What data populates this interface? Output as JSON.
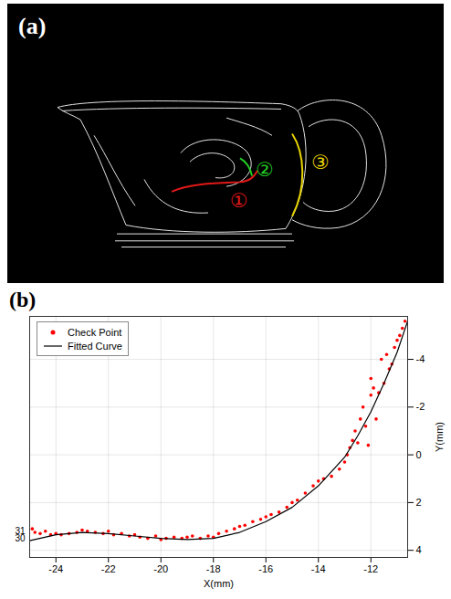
{
  "image_panel": {
    "label": "(a)",
    "markers": [
      {
        "text": "①",
        "color": "#e01818"
      },
      {
        "text": "②",
        "color": "#22cc22"
      },
      {
        "text": "③",
        "color": "#e6d200"
      }
    ]
  },
  "chart_data": {
    "panel_label": "(b)",
    "type": "scatter",
    "xlabel": "X(mm)",
    "ylabel": "Y(mm)",
    "xlim": [
      -25,
      -10.6
    ],
    "ylim": [
      -5.8,
      4.3
    ],
    "xticks": [
      -24,
      -22,
      -20,
      -18,
      -16,
      -14,
      -12
    ],
    "yticks": [
      -4,
      -2,
      0,
      2,
      4
    ],
    "grid": true,
    "legend": "top-left",
    "annotations": [
      {
        "text": "31",
        "y": 3.2
      },
      {
        "text": "30",
        "y": 3.5
      }
    ],
    "series": [
      {
        "name": "Check Point",
        "type": "scatter",
        "color": "#ff0000",
        "marker": "dot",
        "x": [
          -24.9,
          -24.8,
          -24.6,
          -24.4,
          -24.2,
          -24.0,
          -23.8,
          -23.5,
          -23.2,
          -23.0,
          -22.8,
          -22.5,
          -22.2,
          -22.0,
          -21.8,
          -21.5,
          -21.2,
          -21.0,
          -20.8,
          -20.5,
          -20.2,
          -20.0,
          -19.8,
          -19.5,
          -19.2,
          -19.0,
          -18.8,
          -18.5,
          -18.2,
          -18.0,
          -17.8,
          -17.5,
          -17.2,
          -17.0,
          -16.8,
          -16.5,
          -16.2,
          -16.0,
          -15.8,
          -15.5,
          -15.2,
          -15.0,
          -14.8,
          -14.5,
          -14.2,
          -14.0,
          -13.8,
          -13.5,
          -13.2,
          -13.0,
          -12.9,
          -12.8,
          -12.7,
          -12.6,
          -12.5,
          -12.4,
          -12.3,
          -12.2,
          -12.1,
          -12.0,
          -12.0,
          -11.9,
          -11.8,
          -11.7,
          -11.6,
          -11.5,
          -11.4,
          -11.3,
          -11.2,
          -11.1,
          -11.0,
          -10.9,
          -10.8,
          -10.7
        ],
        "values": [
          3.1,
          3.25,
          3.3,
          3.2,
          3.35,
          3.3,
          3.35,
          3.3,
          3.25,
          3.15,
          3.2,
          3.25,
          3.3,
          3.2,
          3.35,
          3.3,
          3.4,
          3.35,
          3.45,
          3.5,
          3.4,
          3.55,
          3.5,
          3.45,
          3.5,
          3.45,
          3.4,
          3.5,
          3.4,
          3.45,
          3.3,
          3.2,
          3.1,
          3.0,
          2.95,
          2.8,
          2.7,
          2.6,
          2.5,
          2.4,
          2.2,
          2.0,
          1.9,
          1.6,
          1.3,
          1.1,
          1.0,
          0.9,
          0.6,
          0.3,
          0.0,
          -0.3,
          -0.6,
          -1.0,
          -0.5,
          -1.5,
          -2.0,
          -1.2,
          -0.4,
          -2.5,
          -3.2,
          -2.8,
          -1.5,
          -2.6,
          -4.0,
          -3.0,
          -4.2,
          -3.6,
          -3.8,
          -4.5,
          -4.8,
          -5.0,
          -5.3,
          -5.6
        ]
      },
      {
        "name": "Fitted Curve",
        "type": "line",
        "color": "#000000",
        "line_style": "solid",
        "x": [
          -25,
          -24,
          -23,
          -22,
          -21,
          -20,
          -19,
          -18,
          -17,
          -16,
          -15,
          -14,
          -13,
          -12.5,
          -12,
          -11.5,
          -11,
          -10.6
        ],
        "values": [
          3.6,
          3.35,
          3.25,
          3.3,
          3.4,
          3.5,
          3.55,
          3.5,
          3.25,
          2.8,
          2.2,
          1.3,
          0.1,
          -0.8,
          -1.8,
          -3.0,
          -4.3,
          -5.6
        ]
      }
    ]
  }
}
